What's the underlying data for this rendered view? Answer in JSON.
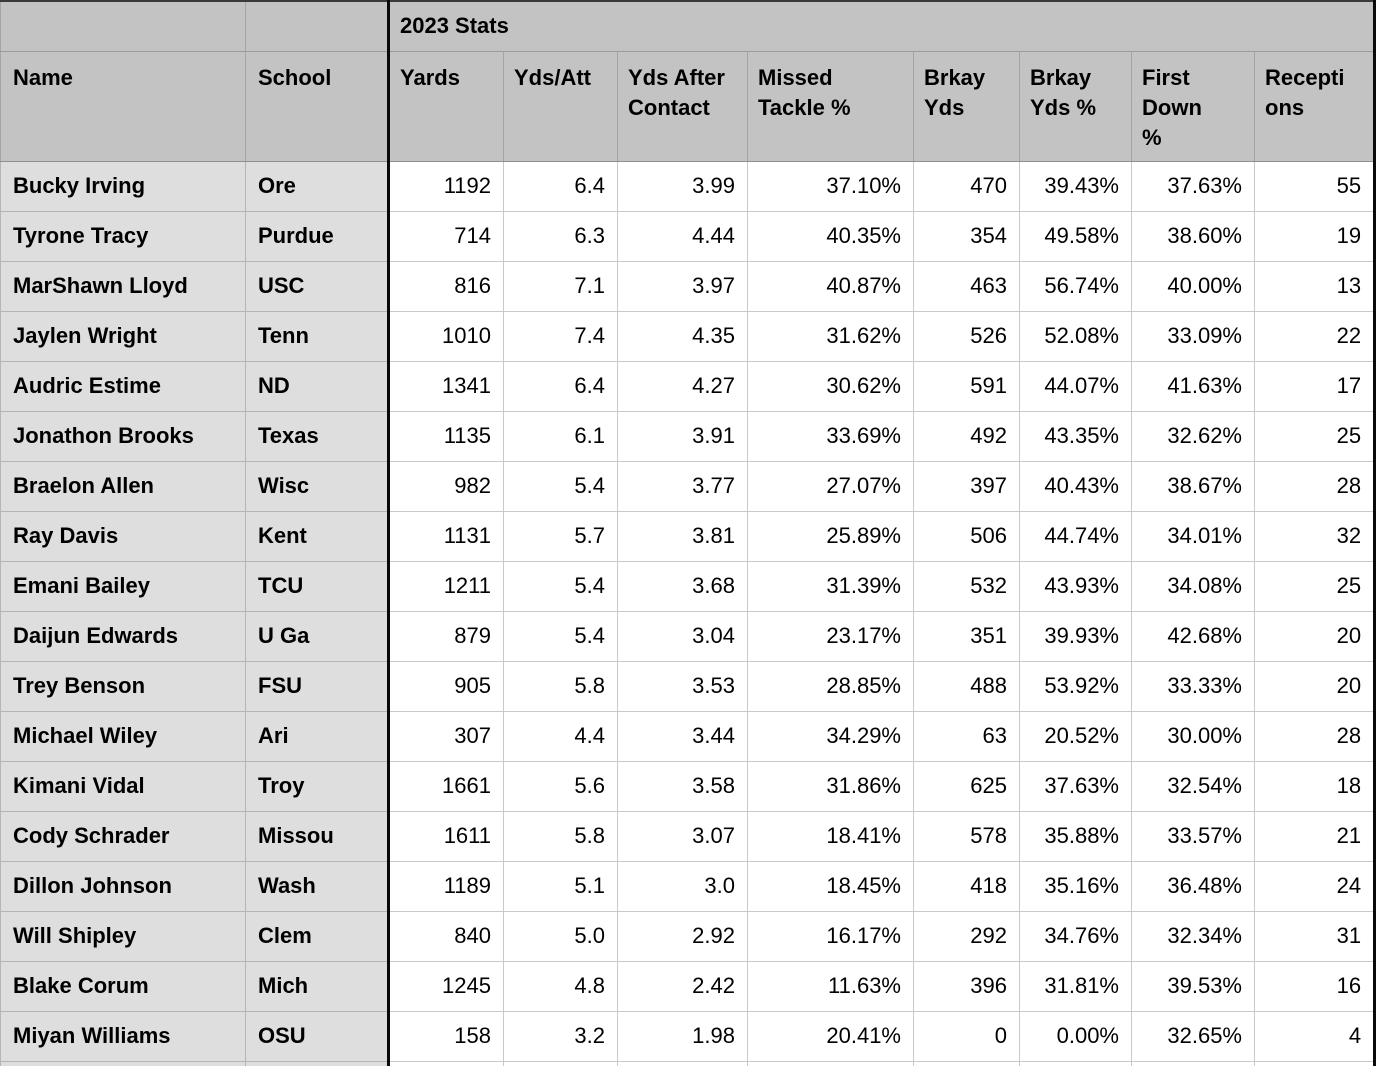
{
  "table": {
    "group_header": "2023 Stats",
    "columns": [
      "Name",
      "School",
      "Yards",
      "Yds/Att",
      "Yds After Contact",
      "Missed Tackle %",
      "Brkay Yds",
      "Brkay Yds %",
      "First Down %",
      "Receptions"
    ],
    "rows": [
      [
        "Bucky Irving",
        "Ore",
        "1192",
        "6.4",
        "3.99",
        "37.10%",
        "470",
        "39.43%",
        "37.63%",
        "55"
      ],
      [
        "Tyrone Tracy",
        "Purdue",
        "714",
        "6.3",
        "4.44",
        "40.35%",
        "354",
        "49.58%",
        "38.60%",
        "19"
      ],
      [
        "MarShawn Lloyd",
        "USC",
        "816",
        "7.1",
        "3.97",
        "40.87%",
        "463",
        "56.74%",
        "40.00%",
        "13"
      ],
      [
        "Jaylen Wright",
        "Tenn",
        "1010",
        "7.4",
        "4.35",
        "31.62%",
        "526",
        "52.08%",
        "33.09%",
        "22"
      ],
      [
        "Audric Estime",
        "ND",
        "1341",
        "6.4",
        "4.27",
        "30.62%",
        "591",
        "44.07%",
        "41.63%",
        "17"
      ],
      [
        "Jonathon Brooks",
        "Texas",
        "1135",
        "6.1",
        "3.91",
        "33.69%",
        "492",
        "43.35%",
        "32.62%",
        "25"
      ],
      [
        "Braelon Allen",
        "Wisc",
        "982",
        "5.4",
        "3.77",
        "27.07%",
        "397",
        "40.43%",
        "38.67%",
        "28"
      ],
      [
        "Ray Davis",
        "Kent",
        "1131",
        "5.7",
        "3.81",
        "25.89%",
        "506",
        "44.74%",
        "34.01%",
        "32"
      ],
      [
        "Emani Bailey",
        "TCU",
        "1211",
        "5.4",
        "3.68",
        "31.39%",
        "532",
        "43.93%",
        "34.08%",
        "25"
      ],
      [
        "Daijun Edwards",
        "U Ga",
        "879",
        "5.4",
        "3.04",
        "23.17%",
        "351",
        "39.93%",
        "42.68%",
        "20"
      ],
      [
        "Trey Benson",
        "FSU",
        "905",
        "5.8",
        "3.53",
        "28.85%",
        "488",
        "53.92%",
        "33.33%",
        "20"
      ],
      [
        "Michael Wiley",
        "Ari",
        "307",
        "4.4",
        "3.44",
        "34.29%",
        "63",
        "20.52%",
        "30.00%",
        "28"
      ],
      [
        "Kimani Vidal",
        "Troy",
        "1661",
        "5.6",
        "3.58",
        "31.86%",
        "625",
        "37.63%",
        "32.54%",
        "18"
      ],
      [
        "Cody Schrader",
        "Missou",
        "1611",
        "5.8",
        "3.07",
        "18.41%",
        "578",
        "35.88%",
        "33.57%",
        "21"
      ],
      [
        "Dillon Johnson",
        "Wash",
        "1189",
        "5.1",
        "3.0",
        "18.45%",
        "418",
        "35.16%",
        "36.48%",
        "24"
      ],
      [
        "Will Shipley",
        "Clem",
        "840",
        "5.0",
        "2.92",
        "16.17%",
        "292",
        "34.76%",
        "32.34%",
        "31"
      ],
      [
        "Blake Corum",
        "Mich",
        "1245",
        "4.8",
        "2.42",
        "11.63%",
        "396",
        "31.81%",
        "39.53%",
        "16"
      ],
      [
        "Miyan Williams",
        "OSU",
        "158",
        "3.2",
        "1.98",
        "20.41%",
        "0",
        "0.00%",
        "32.65%",
        "4"
      ]
    ]
  },
  "colors": {
    "header_gray": "#c2c3c2",
    "row_label_gray": "#dedede",
    "cell_white": "#ffffff",
    "heavy_divider": "#0a0a0a"
  }
}
